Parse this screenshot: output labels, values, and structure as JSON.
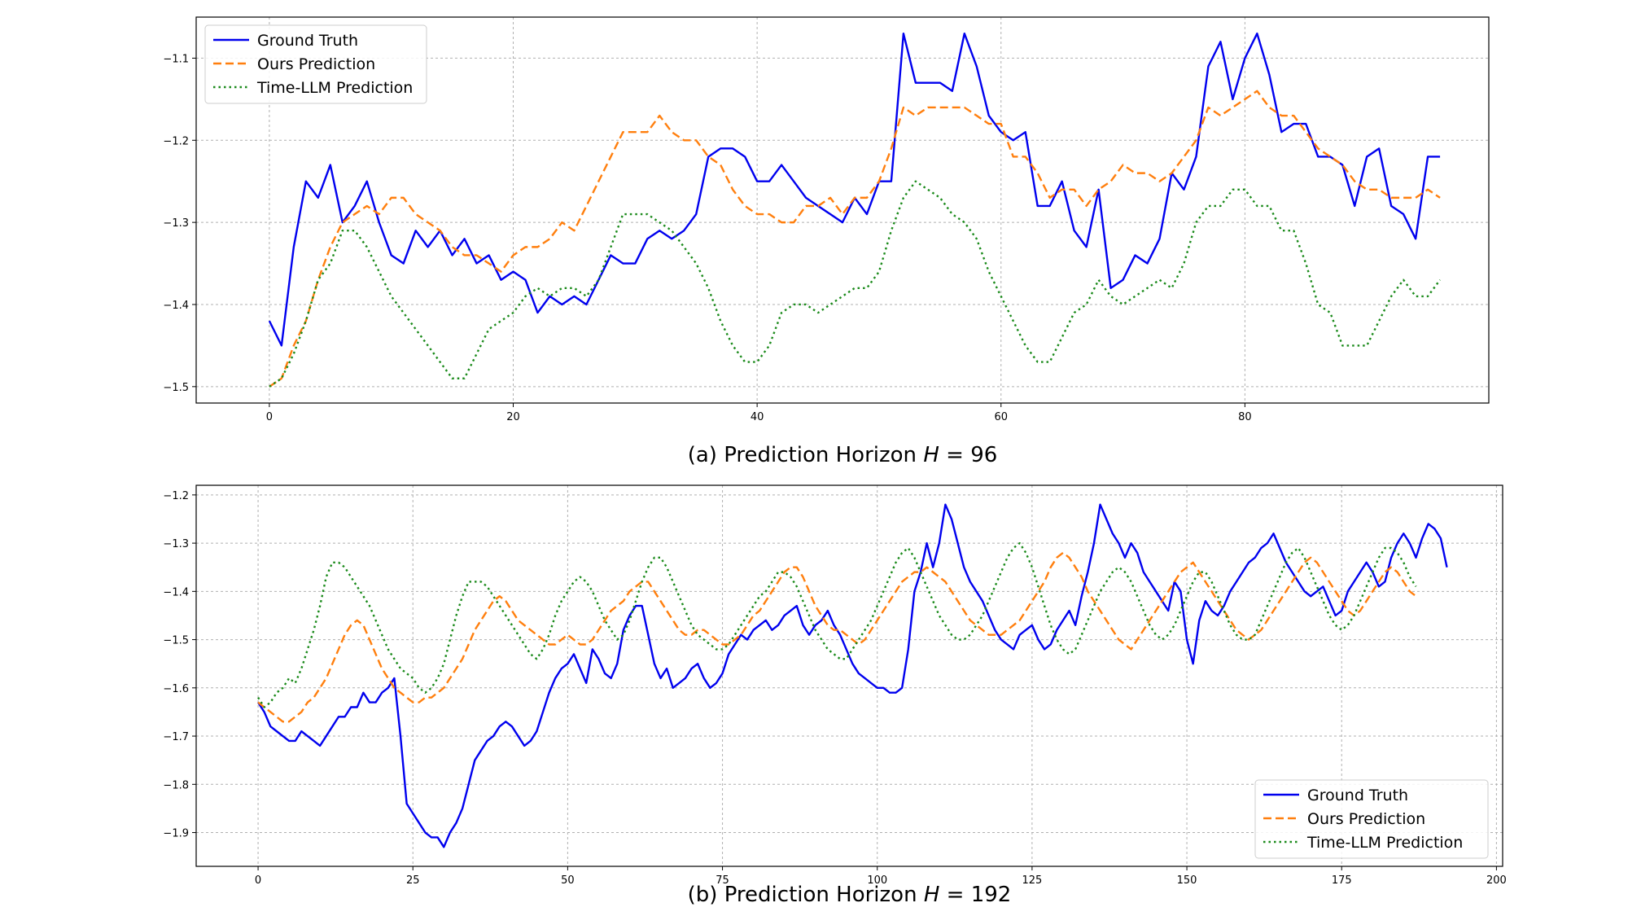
{
  "colors": {
    "ground_truth": "#0000ee",
    "ours": "#ff7f0e",
    "timellm": "#1a8a1a"
  },
  "chart_data": [
    {
      "type": "line",
      "caption_prefix": "(a) Prediction Horizon ",
      "caption_var": "H",
      "caption_suffix": " = 96",
      "xlim": [
        -6,
        100
      ],
      "ylim": [
        -1.52,
        -1.05
      ],
      "xticks": [
        0,
        20,
        40,
        60,
        80
      ],
      "yticks": [
        -1.5,
        -1.4,
        -1.3,
        -1.2,
        -1.1
      ],
      "ytick_labels": [
        "−1.5",
        "−1.4",
        "−1.3",
        "−1.2",
        "−1.1"
      ],
      "grid": true,
      "legend_position": "upper-left",
      "series": [
        {
          "name": "Ground Truth",
          "style": "solid",
          "color": "#0000ee",
          "values": [
            -1.42,
            -1.45,
            -1.33,
            -1.25,
            -1.27,
            -1.23,
            -1.3,
            -1.28,
            -1.25,
            -1.3,
            -1.34,
            -1.35,
            -1.31,
            -1.33,
            -1.31,
            -1.34,
            -1.32,
            -1.35,
            -1.34,
            -1.37,
            -1.36,
            -1.37,
            -1.41,
            -1.39,
            -1.4,
            -1.39,
            -1.4,
            -1.37,
            -1.34,
            -1.35,
            -1.35,
            -1.32,
            -1.31,
            -1.32,
            -1.31,
            -1.29,
            -1.22,
            -1.21,
            -1.21,
            -1.22,
            -1.25,
            -1.25,
            -1.23,
            -1.25,
            -1.27,
            -1.28,
            -1.29,
            -1.3,
            -1.27,
            -1.29,
            -1.25,
            -1.25,
            -1.07,
            -1.13,
            -1.13,
            -1.13,
            -1.14,
            -1.07,
            -1.11,
            -1.17,
            -1.19,
            -1.2,
            -1.19,
            -1.28,
            -1.28,
            -1.25,
            -1.31,
            -1.33,
            -1.26,
            -1.38,
            -1.37,
            -1.34,
            -1.35,
            -1.32,
            -1.24,
            -1.26,
            -1.22,
            -1.11,
            -1.08,
            -1.15,
            -1.1,
            -1.07,
            -1.12,
            -1.19,
            -1.18,
            -1.18,
            -1.22,
            -1.22,
            -1.23,
            -1.28,
            -1.22,
            -1.21,
            -1.28,
            -1.29,
            -1.32,
            -1.22,
            -1.22
          ]
        },
        {
          "name": "Ours Prediction",
          "style": "dashed",
          "color": "#ff7f0e",
          "values": [
            -1.5,
            -1.49,
            -1.45,
            -1.42,
            -1.37,
            -1.33,
            -1.3,
            -1.29,
            -1.28,
            -1.29,
            -1.27,
            -1.27,
            -1.29,
            -1.3,
            -1.31,
            -1.33,
            -1.34,
            -1.34,
            -1.35,
            -1.36,
            -1.34,
            -1.33,
            -1.33,
            -1.32,
            -1.3,
            -1.31,
            -1.28,
            -1.25,
            -1.22,
            -1.19,
            -1.19,
            -1.19,
            -1.17,
            -1.19,
            -1.2,
            -1.2,
            -1.22,
            -1.23,
            -1.26,
            -1.28,
            -1.29,
            -1.29,
            -1.3,
            -1.3,
            -1.28,
            -1.28,
            -1.27,
            -1.29,
            -1.27,
            -1.27,
            -1.25,
            -1.21,
            -1.16,
            -1.17,
            -1.16,
            -1.16,
            -1.16,
            -1.16,
            -1.17,
            -1.18,
            -1.18,
            -1.22,
            -1.22,
            -1.24,
            -1.27,
            -1.26,
            -1.26,
            -1.28,
            -1.26,
            -1.25,
            -1.23,
            -1.24,
            -1.24,
            -1.25,
            -1.24,
            -1.22,
            -1.2,
            -1.16,
            -1.17,
            -1.16,
            -1.15,
            -1.14,
            -1.16,
            -1.17,
            -1.17,
            -1.19,
            -1.21,
            -1.22,
            -1.23,
            -1.25,
            -1.26,
            -1.26,
            -1.27,
            -1.27,
            -1.27,
            -1.26,
            -1.27
          ]
        },
        {
          "name": "Time-LLM Prediction",
          "style": "dotted",
          "color": "#1a8a1a",
          "values": [
            -1.5,
            -1.49,
            -1.46,
            -1.42,
            -1.37,
            -1.35,
            -1.31,
            -1.31,
            -1.33,
            -1.36,
            -1.39,
            -1.41,
            -1.43,
            -1.45,
            -1.47,
            -1.49,
            -1.49,
            -1.46,
            -1.43,
            -1.42,
            -1.41,
            -1.39,
            -1.38,
            -1.39,
            -1.38,
            -1.38,
            -1.39,
            -1.37,
            -1.33,
            -1.29,
            -1.29,
            -1.29,
            -1.3,
            -1.31,
            -1.33,
            -1.35,
            -1.38,
            -1.42,
            -1.45,
            -1.47,
            -1.47,
            -1.45,
            -1.41,
            -1.4,
            -1.4,
            -1.41,
            -1.4,
            -1.39,
            -1.38,
            -1.38,
            -1.36,
            -1.31,
            -1.27,
            -1.25,
            -1.26,
            -1.27,
            -1.29,
            -1.3,
            -1.32,
            -1.36,
            -1.39,
            -1.42,
            -1.45,
            -1.47,
            -1.47,
            -1.44,
            -1.41,
            -1.4,
            -1.37,
            -1.39,
            -1.4,
            -1.39,
            -1.38,
            -1.37,
            -1.38,
            -1.35,
            -1.3,
            -1.28,
            -1.28,
            -1.26,
            -1.26,
            -1.28,
            -1.28,
            -1.31,
            -1.31,
            -1.35,
            -1.4,
            -1.41,
            -1.45,
            -1.45,
            -1.45,
            -1.42,
            -1.39,
            -1.37,
            -1.39,
            -1.39,
            -1.37
          ]
        }
      ]
    },
    {
      "type": "line",
      "caption_prefix": "(b) Prediction Horizon ",
      "caption_var": "H",
      "caption_suffix": " = 192",
      "xlim": [
        -10,
        201
      ],
      "ylim": [
        -1.97,
        -1.18
      ],
      "xticks": [
        0,
        25,
        50,
        75,
        100,
        125,
        150,
        175,
        200
      ],
      "yticks": [
        -1.9,
        -1.8,
        -1.7,
        -1.6,
        -1.5,
        -1.4,
        -1.3,
        -1.2
      ],
      "ytick_labels": [
        "−1.9",
        "−1.8",
        "−1.7",
        "−1.6",
        "−1.5",
        "−1.4",
        "−1.3",
        "−1.2"
      ],
      "grid": true,
      "legend_position": "lower-right",
      "series": [
        {
          "name": "Ground Truth",
          "style": "solid",
          "color": "#0000ee",
          "values": [
            -1.63,
            -1.65,
            -1.68,
            -1.69,
            -1.7,
            -1.71,
            -1.71,
            -1.69,
            -1.7,
            -1.71,
            -1.72,
            -1.7,
            -1.68,
            -1.66,
            -1.66,
            -1.64,
            -1.64,
            -1.61,
            -1.63,
            -1.63,
            -1.61,
            -1.6,
            -1.58,
            -1.7,
            -1.84,
            -1.86,
            -1.88,
            -1.9,
            -1.91,
            -1.91,
            -1.93,
            -1.9,
            -1.88,
            -1.85,
            -1.8,
            -1.75,
            -1.73,
            -1.71,
            -1.7,
            -1.68,
            -1.67,
            -1.68,
            -1.7,
            -1.72,
            -1.71,
            -1.69,
            -1.65,
            -1.61,
            -1.58,
            -1.56,
            -1.55,
            -1.53,
            -1.56,
            -1.59,
            -1.52,
            -1.54,
            -1.57,
            -1.58,
            -1.55,
            -1.48,
            -1.45,
            -1.43,
            -1.43,
            -1.49,
            -1.55,
            -1.58,
            -1.56,
            -1.6,
            -1.59,
            -1.58,
            -1.56,
            -1.55,
            -1.58,
            -1.6,
            -1.59,
            -1.57,
            -1.53,
            -1.51,
            -1.49,
            -1.5,
            -1.48,
            -1.47,
            -1.46,
            -1.48,
            -1.47,
            -1.45,
            -1.44,
            -1.43,
            -1.47,
            -1.49,
            -1.47,
            -1.46,
            -1.44,
            -1.47,
            -1.49,
            -1.52,
            -1.55,
            -1.57,
            -1.58,
            -1.59,
            -1.6,
            -1.6,
            -1.61,
            -1.61,
            -1.6,
            -1.52,
            -1.4,
            -1.36,
            -1.3,
            -1.35,
            -1.3,
            -1.22,
            -1.25,
            -1.3,
            -1.35,
            -1.38,
            -1.4,
            -1.42,
            -1.45,
            -1.48,
            -1.5,
            -1.51,
            -1.52,
            -1.49,
            -1.48,
            -1.47,
            -1.5,
            -1.52,
            -1.51,
            -1.48,
            -1.46,
            -1.44,
            -1.47,
            -1.41,
            -1.36,
            -1.3,
            -1.22,
            -1.25,
            -1.28,
            -1.3,
            -1.33,
            -1.3,
            -1.32,
            -1.36,
            -1.38,
            -1.4,
            -1.42,
            -1.44,
            -1.38,
            -1.4,
            -1.5,
            -1.55,
            -1.46,
            -1.42,
            -1.44,
            -1.45,
            -1.43,
            -1.4,
            -1.38,
            -1.36,
            -1.34,
            -1.33,
            -1.31,
            -1.3,
            -1.28,
            -1.31,
            -1.34,
            -1.36,
            -1.38,
            -1.4,
            -1.41,
            -1.4,
            -1.39,
            -1.42,
            -1.45,
            -1.44,
            -1.4,
            -1.38,
            -1.36,
            -1.34,
            -1.36,
            -1.39,
            -1.38,
            -1.33,
            -1.3,
            -1.28,
            -1.3,
            -1.33,
            -1.29,
            -1.26,
            -1.27,
            -1.29,
            -1.35
          ]
        },
        {
          "name": "Ours Prediction",
          "style": "dashed",
          "color": "#ff7f0e",
          "values": [
            -1.63,
            -1.64,
            -1.65,
            -1.66,
            -1.67,
            -1.67,
            -1.66,
            -1.65,
            -1.63,
            -1.62,
            -1.6,
            -1.58,
            -1.55,
            -1.52,
            -1.49,
            -1.47,
            -1.46,
            -1.47,
            -1.5,
            -1.53,
            -1.56,
            -1.58,
            -1.6,
            -1.61,
            -1.62,
            -1.63,
            -1.63,
            -1.62,
            -1.62,
            -1.61,
            -1.6,
            -1.58,
            -1.56,
            -1.54,
            -1.51,
            -1.48,
            -1.46,
            -1.44,
            -1.42,
            -1.41,
            -1.42,
            -1.44,
            -1.46,
            -1.47,
            -1.48,
            -1.49,
            -1.5,
            -1.51,
            -1.51,
            -1.5,
            -1.49,
            -1.5,
            -1.51,
            -1.51,
            -1.5,
            -1.48,
            -1.46,
            -1.44,
            -1.43,
            -1.42,
            -1.4,
            -1.39,
            -1.38,
            -1.38,
            -1.4,
            -1.42,
            -1.44,
            -1.46,
            -1.48,
            -1.49,
            -1.49,
            -1.48,
            -1.48,
            -1.49,
            -1.5,
            -1.51,
            -1.51,
            -1.5,
            -1.49,
            -1.47,
            -1.45,
            -1.44,
            -1.42,
            -1.4,
            -1.38,
            -1.36,
            -1.35,
            -1.35,
            -1.37,
            -1.4,
            -1.43,
            -1.45,
            -1.47,
            -1.48,
            -1.48,
            -1.49,
            -1.5,
            -1.51,
            -1.5,
            -1.48,
            -1.46,
            -1.44,
            -1.42,
            -1.4,
            -1.38,
            -1.37,
            -1.36,
            -1.36,
            -1.35,
            -1.36,
            -1.37,
            -1.38,
            -1.4,
            -1.42,
            -1.44,
            -1.46,
            -1.47,
            -1.48,
            -1.49,
            -1.49,
            -1.49,
            -1.48,
            -1.47,
            -1.46,
            -1.44,
            -1.42,
            -1.4,
            -1.38,
            -1.35,
            -1.33,
            -1.32,
            -1.33,
            -1.35,
            -1.37,
            -1.4,
            -1.42,
            -1.44,
            -1.46,
            -1.48,
            -1.5,
            -1.51,
            -1.52,
            -1.5,
            -1.48,
            -1.46,
            -1.44,
            -1.42,
            -1.4,
            -1.38,
            -1.36,
            -1.35,
            -1.34,
            -1.36,
            -1.38,
            -1.4,
            -1.42,
            -1.44,
            -1.46,
            -1.48,
            -1.49,
            -1.5,
            -1.49,
            -1.48,
            -1.46,
            -1.44,
            -1.42,
            -1.4,
            -1.38,
            -1.36,
            -1.34,
            -1.33,
            -1.34,
            -1.36,
            -1.38,
            -1.4,
            -1.42,
            -1.44,
            -1.45,
            -1.44,
            -1.42,
            -1.4,
            -1.38,
            -1.36,
            -1.35,
            -1.36,
            -1.38,
            -1.4,
            -1.41
          ]
        },
        {
          "name": "Time-LLM Prediction",
          "style": "dotted",
          "color": "#1a8a1a",
          "values": [
            -1.62,
            -1.64,
            -1.63,
            -1.61,
            -1.6,
            -1.58,
            -1.59,
            -1.56,
            -1.52,
            -1.48,
            -1.43,
            -1.37,
            -1.34,
            -1.34,
            -1.35,
            -1.37,
            -1.39,
            -1.41,
            -1.43,
            -1.46,
            -1.49,
            -1.52,
            -1.54,
            -1.56,
            -1.57,
            -1.58,
            -1.6,
            -1.61,
            -1.6,
            -1.58,
            -1.55,
            -1.5,
            -1.45,
            -1.41,
            -1.38,
            -1.38,
            -1.38,
            -1.39,
            -1.41,
            -1.43,
            -1.45,
            -1.47,
            -1.49,
            -1.51,
            -1.53,
            -1.54,
            -1.52,
            -1.49,
            -1.45,
            -1.42,
            -1.4,
            -1.38,
            -1.37,
            -1.38,
            -1.4,
            -1.43,
            -1.46,
            -1.48,
            -1.5,
            -1.49,
            -1.46,
            -1.42,
            -1.38,
            -1.35,
            -1.33,
            -1.33,
            -1.35,
            -1.38,
            -1.41,
            -1.44,
            -1.47,
            -1.49,
            -1.5,
            -1.51,
            -1.52,
            -1.52,
            -1.51,
            -1.49,
            -1.47,
            -1.45,
            -1.43,
            -1.41,
            -1.4,
            -1.38,
            -1.36,
            -1.36,
            -1.37,
            -1.39,
            -1.42,
            -1.45,
            -1.48,
            -1.5,
            -1.52,
            -1.53,
            -1.54,
            -1.54,
            -1.52,
            -1.5,
            -1.48,
            -1.46,
            -1.43,
            -1.4,
            -1.37,
            -1.34,
            -1.32,
            -1.31,
            -1.33,
            -1.36,
            -1.39,
            -1.42,
            -1.45,
            -1.47,
            -1.49,
            -1.5,
            -1.5,
            -1.49,
            -1.47,
            -1.45,
            -1.42,
            -1.39,
            -1.36,
            -1.33,
            -1.31,
            -1.3,
            -1.32,
            -1.35,
            -1.39,
            -1.43,
            -1.47,
            -1.5,
            -1.52,
            -1.53,
            -1.52,
            -1.49,
            -1.46,
            -1.43,
            -1.4,
            -1.38,
            -1.36,
            -1.35,
            -1.36,
            -1.38,
            -1.41,
            -1.44,
            -1.47,
            -1.49,
            -1.5,
            -1.49,
            -1.47,
            -1.44,
            -1.41,
            -1.38,
            -1.36,
            -1.36,
            -1.38,
            -1.41,
            -1.44,
            -1.47,
            -1.49,
            -1.5,
            -1.5,
            -1.49,
            -1.46,
            -1.43,
            -1.4,
            -1.37,
            -1.34,
            -1.32,
            -1.31,
            -1.33,
            -1.36,
            -1.39,
            -1.42,
            -1.45,
            -1.47,
            -1.48,
            -1.47,
            -1.45,
            -1.42,
            -1.39,
            -1.36,
            -1.33,
            -1.31,
            -1.31,
            -1.32,
            -1.34,
            -1.37,
            -1.39
          ]
        }
      ]
    }
  ]
}
